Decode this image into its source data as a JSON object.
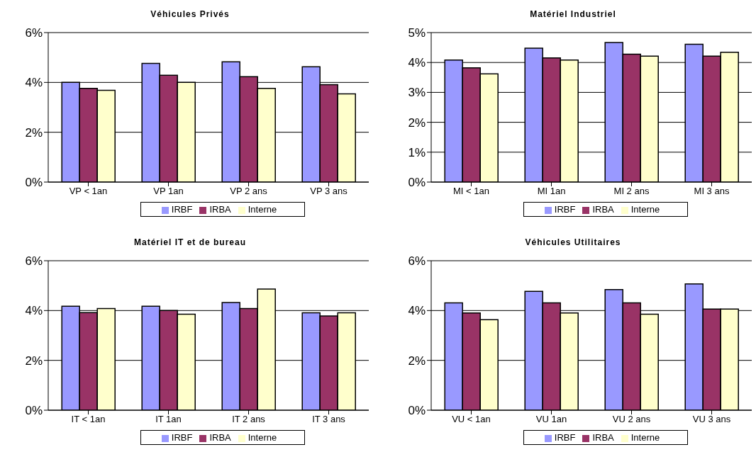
{
  "chart_data": [
    {
      "type": "bar",
      "title": "Véhicules Privés",
      "categories": [
        "VP < 1an",
        "VP 1an",
        "VP 2 ans",
        "VP 3 ans"
      ],
      "series": [
        {
          "name": "IRBF",
          "color": "#9999ff",
          "values": [
            4.0,
            4.76,
            4.83,
            4.63
          ]
        },
        {
          "name": "IRBA",
          "color": "#993366",
          "values": [
            3.76,
            4.29,
            4.23,
            3.91
          ]
        },
        {
          "name": "Interne",
          "color": "#ffffcc",
          "values": [
            3.68,
            4.0,
            3.76,
            3.54
          ]
        }
      ],
      "ylim": [
        0,
        6
      ],
      "yticks": [
        {
          "value": 0,
          "label": "0%"
        },
        {
          "value": 2,
          "label": "2%"
        },
        {
          "value": 4,
          "label": "4%"
        },
        {
          "value": 6,
          "label": "6%"
        }
      ],
      "grid": "y",
      "legend": "bottom"
    },
    {
      "type": "bar",
      "title": "Matériel Industriel",
      "categories": [
        "MI < 1an",
        "MI 1an",
        "MI 2 ans",
        "MI 3 ans"
      ],
      "series": [
        {
          "name": "IRBF",
          "color": "#9999ff",
          "values": [
            4.08,
            4.48,
            4.67,
            4.61
          ]
        },
        {
          "name": "IRBA",
          "color": "#993366",
          "values": [
            3.82,
            4.15,
            4.28,
            4.21
          ]
        },
        {
          "name": "Interne",
          "color": "#ffffcc",
          "values": [
            3.62,
            4.08,
            4.21,
            4.34
          ]
        }
      ],
      "ylim": [
        0,
        5
      ],
      "yticks": [
        {
          "value": 0,
          "label": "0%"
        },
        {
          "value": 1,
          "label": "1%"
        },
        {
          "value": 2,
          "label": "2%"
        },
        {
          "value": 3,
          "label": "3%"
        },
        {
          "value": 4,
          "label": "4%"
        },
        {
          "value": 5,
          "label": "5%"
        }
      ],
      "grid": "y",
      "legend": "bottom"
    },
    {
      "type": "bar",
      "title": "Matériel IT et de bureau",
      "categories": [
        "IT < 1an",
        "IT 1an",
        "IT 2 ans",
        "IT 3 ans"
      ],
      "series": [
        {
          "name": "IRBF",
          "color": "#9999ff",
          "values": [
            4.17,
            4.17,
            4.32,
            3.91
          ]
        },
        {
          "name": "IRBA",
          "color": "#993366",
          "values": [
            3.92,
            4.0,
            4.08,
            3.78
          ]
        },
        {
          "name": "Interne",
          "color": "#ffffcc",
          "values": [
            4.08,
            3.85,
            4.86,
            3.91
          ]
        }
      ],
      "ylim": [
        0,
        6
      ],
      "yticks": [
        {
          "value": 0,
          "label": "0%"
        },
        {
          "value": 2,
          "label": "2%"
        },
        {
          "value": 4,
          "label": "4%"
        },
        {
          "value": 6,
          "label": "6%"
        }
      ],
      "grid": "y",
      "legend": "bottom"
    },
    {
      "type": "bar",
      "title": "Véhicules Utilitaires",
      "categories": [
        "VU < 1an",
        "VU 1an",
        "VU 2 ans",
        "VU 3 ans"
      ],
      "series": [
        {
          "name": "IRBF",
          "color": "#9999ff",
          "values": [
            4.31,
            4.77,
            4.84,
            5.07
          ]
        },
        {
          "name": "IRBA",
          "color": "#993366",
          "values": [
            3.9,
            4.31,
            4.31,
            4.06
          ]
        },
        {
          "name": "Interne",
          "color": "#ffffcc",
          "values": [
            3.63,
            3.9,
            3.85,
            4.06
          ]
        }
      ],
      "ylim": [
        0,
        6
      ],
      "yticks": [
        {
          "value": 0,
          "label": "0%"
        },
        {
          "value": 2,
          "label": "2%"
        },
        {
          "value": 4,
          "label": "4%"
        },
        {
          "value": 6,
          "label": "6%"
        }
      ],
      "grid": "y",
      "legend": "bottom"
    }
  ]
}
